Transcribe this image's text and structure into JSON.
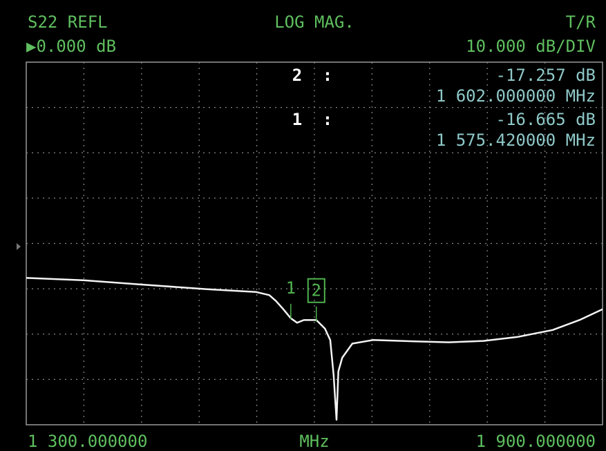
{
  "chart_data": {
    "type": "line",
    "parameter": "S22 REFL",
    "title": "LOG MAG.",
    "mode": "T/R",
    "reference": "▶0.000 dB",
    "scale": "10.000 dB/DIV",
    "x_label": "MHz",
    "xlim": [
      1300,
      1900
    ],
    "ylim": [
      -40,
      40
    ],
    "xticks": [
      {
        "value": 1300,
        "label": "1 300.000000"
      },
      {
        "value": 1900,
        "label": "1 900.000000"
      }
    ],
    "color": "#f4f4f4",
    "x": [
      1300,
      1359,
      1416.5,
      1488.5,
      1539,
      1553,
      1560,
      1567.6,
      1575.4,
      1582,
      1589,
      1602,
      1611,
      1616.5,
      1620,
      1623,
      1625,
      1629,
      1639.5,
      1661,
      1704,
      1740,
      1776,
      1812,
      1848,
      1877,
      1900
    ],
    "values": [
      -7.6,
      -8.1,
      -9.0,
      -10.1,
      -10.7,
      -11.4,
      -12.7,
      -14.5,
      -16.5,
      -17.5,
      -16.9,
      -16.9,
      -18.8,
      -21.3,
      -29.0,
      -38.9,
      -28.2,
      -25.2,
      -22.1,
      -21.3,
      -21.6,
      -21.8,
      -21.5,
      -20.6,
      -19.1,
      -16.8,
      -14.5
    ],
    "markers": [
      {
        "label": "2",
        "sep": ":",
        "x": 1602,
        "value": -17.257,
        "value_label": "-17.257 dB",
        "x_text": "1 602.000000 MHz"
      },
      {
        "label": "1",
        "sep": ":",
        "x": 1575.42,
        "value": -16.665,
        "value_label": "-16.665 dB",
        "x_text": "1 575.420000 MHz"
      }
    ]
  }
}
